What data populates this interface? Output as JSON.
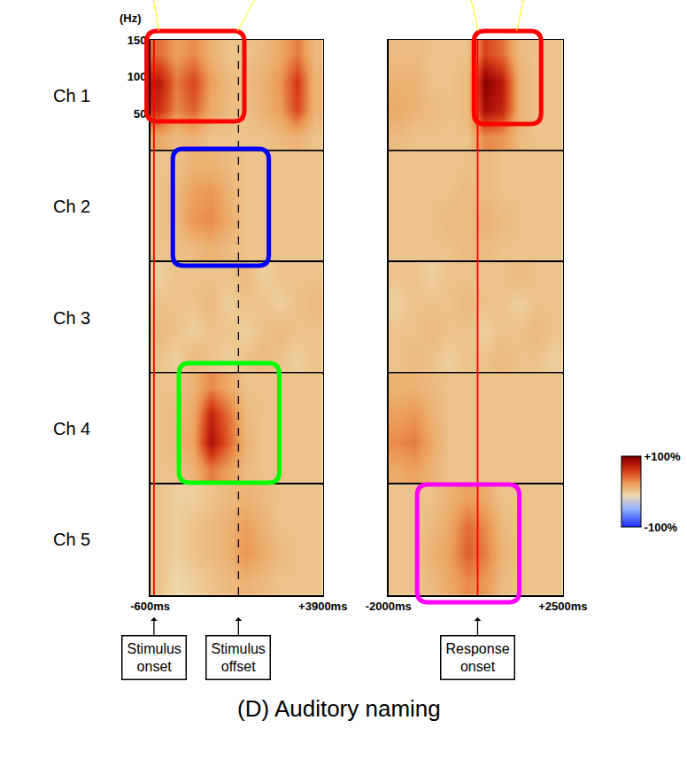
{
  "chart_data": {
    "type": "heatmap",
    "title": "(D) Auditory naming",
    "y_label": "(Hz)",
    "ylim": [
      0,
      150
    ],
    "yticks": [
      50,
      100,
      150
    ],
    "freq_bins": [
      0,
      37.5,
      75,
      112.5,
      150
    ],
    "colorbar": {
      "range": [
        -100,
        100
      ],
      "ticks": [
        {
          "value": 100,
          "label": "+100%"
        },
        {
          "value": -100,
          "label": "-100%"
        }
      ]
    },
    "channels": [
      "Ch 1",
      "Ch 2",
      "Ch 3",
      "Ch 4",
      "Ch 5"
    ],
    "panels": [
      {
        "xlim": [
          -600,
          3900
        ],
        "xticks": [
          {
            "value": -600,
            "label": "-600ms"
          },
          {
            "value": 3900,
            "label": "+3900ms"
          }
        ],
        "time_bins": [
          -600,
          -150,
          300,
          750,
          1200,
          1650,
          2100,
          2550,
          3000,
          3450,
          3900
        ],
        "events": [
          {
            "x": -500,
            "label": "Stimulus onset",
            "color": "#ff0000",
            "line_style": "solid"
          },
          {
            "x": 1700,
            "label": "Stimulus offset",
            "color": "#000000",
            "line_style": "dashed"
          }
        ],
        "cells": [
          [
            [
              15,
              5,
              10,
              0,
              0,
              0,
              0,
              5,
              10,
              0
            ],
            [
              65,
              30,
              45,
              15,
              5,
              0,
              10,
              20,
              55,
              10
            ],
            [
              75,
              35,
              55,
              20,
              5,
              5,
              10,
              25,
              60,
              10
            ],
            [
              40,
              20,
              30,
              10,
              0,
              0,
              5,
              15,
              35,
              5
            ]
          ],
          [
            [
              0,
              0,
              5,
              10,
              5,
              0,
              0,
              0,
              0,
              0
            ],
            [
              0,
              5,
              25,
              30,
              15,
              0,
              0,
              0,
              0,
              0
            ],
            [
              0,
              5,
              20,
              25,
              10,
              0,
              0,
              0,
              0,
              0
            ],
            [
              0,
              0,
              10,
              10,
              5,
              0,
              0,
              0,
              0,
              0
            ]
          ],
          [
            [
              0,
              -5,
              5,
              0,
              -5,
              0,
              5,
              0,
              -5,
              0
            ],
            [
              5,
              0,
              -5,
              0,
              0,
              -5,
              0,
              5,
              0,
              0
            ],
            [
              0,
              0,
              0,
              5,
              -5,
              0,
              0,
              -5,
              0,
              5
            ],
            [
              -5,
              0,
              0,
              0,
              0,
              5,
              -5,
              0,
              0,
              0
            ]
          ],
          [
            [
              0,
              0,
              10,
              35,
              20,
              5,
              0,
              0,
              0,
              0
            ],
            [
              0,
              5,
              20,
              80,
              45,
              10,
              0,
              0,
              0,
              0
            ],
            [
              0,
              5,
              15,
              70,
              40,
              5,
              0,
              0,
              0,
              0
            ],
            [
              0,
              0,
              10,
              30,
              15,
              0,
              0,
              0,
              0,
              0
            ]
          ],
          [
            [
              0,
              -10,
              -5,
              0,
              5,
              10,
              5,
              0,
              0,
              0
            ],
            [
              0,
              -5,
              0,
              5,
              10,
              25,
              15,
              5,
              0,
              0
            ],
            [
              0,
              -5,
              0,
              5,
              10,
              20,
              10,
              0,
              0,
              0
            ],
            [
              0,
              -5,
              -5,
              0,
              5,
              10,
              5,
              0,
              0,
              0
            ]
          ]
        ]
      },
      {
        "xlim": [
          -2000,
          2500
        ],
        "xticks": [
          {
            "value": -2000,
            "label": "-2000ms"
          },
          {
            "value": 2500,
            "label": "+2500ms"
          }
        ],
        "time_bins": [
          -2000,
          -1550,
          -1100,
          -650,
          -200,
          250,
          700,
          1150,
          1600,
          2050,
          2500
        ],
        "events": [
          {
            "x": 300,
            "label": "Response onset",
            "color": "#ff0000",
            "line_style": "solid"
          }
        ],
        "cells": [
          [
            [
              5,
              0,
              0,
              0,
              0,
              30,
              25,
              5,
              0,
              0
            ],
            [
              15,
              10,
              5,
              0,
              5,
              85,
              70,
              10,
              0,
              0
            ],
            [
              10,
              10,
              0,
              0,
              5,
              95,
              75,
              10,
              0,
              0
            ],
            [
              5,
              5,
              0,
              0,
              0,
              55,
              40,
              5,
              0,
              0
            ]
          ],
          [
            [
              0,
              0,
              0,
              0,
              5,
              5,
              0,
              0,
              0,
              0
            ],
            [
              0,
              0,
              0,
              5,
              5,
              10,
              5,
              0,
              0,
              0
            ],
            [
              0,
              0,
              0,
              0,
              5,
              5,
              0,
              0,
              0,
              0
            ],
            [
              0,
              0,
              0,
              0,
              0,
              5,
              0,
              0,
              0,
              0
            ]
          ],
          [
            [
              0,
              5,
              0,
              -5,
              0,
              0,
              5,
              0,
              0,
              -5
            ],
            [
              0,
              0,
              5,
              0,
              0,
              -5,
              0,
              0,
              5,
              0
            ],
            [
              -5,
              0,
              0,
              0,
              5,
              0,
              0,
              -5,
              0,
              0
            ],
            [
              0,
              0,
              -5,
              0,
              0,
              0,
              0,
              5,
              0,
              0
            ]
          ],
          [
            [
              15,
              20,
              10,
              0,
              0,
              0,
              0,
              0,
              0,
              0
            ],
            [
              30,
              35,
              15,
              0,
              0,
              0,
              0,
              0,
              0,
              0
            ],
            [
              20,
              25,
              10,
              0,
              0,
              0,
              0,
              0,
              0,
              0
            ],
            [
              10,
              10,
              5,
              0,
              0,
              0,
              0,
              0,
              0,
              0
            ]
          ],
          [
            [
              0,
              0,
              5,
              15,
              30,
              25,
              5,
              0,
              0,
              0
            ],
            [
              0,
              0,
              10,
              20,
              45,
              35,
              10,
              0,
              0,
              0
            ],
            [
              0,
              0,
              5,
              15,
              40,
              30,
              5,
              0,
              0,
              0
            ],
            [
              0,
              0,
              0,
              10,
              20,
              15,
              0,
              0,
              0,
              0
            ]
          ]
        ]
      }
    ]
  }
}
